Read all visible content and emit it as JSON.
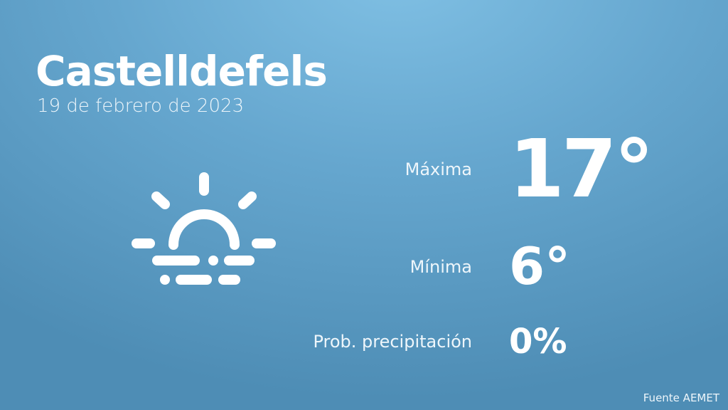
{
  "city": "Castelldefels",
  "date": "19 de febrero de 2023",
  "icon": "sunrise-icon",
  "max": {
    "label": "Máxima",
    "value": "17°"
  },
  "min": {
    "label": "Mínima",
    "value": "6°"
  },
  "precip": {
    "label": "Prob. precipitación",
    "value": "0%"
  },
  "source": "Fuente AEMET"
}
